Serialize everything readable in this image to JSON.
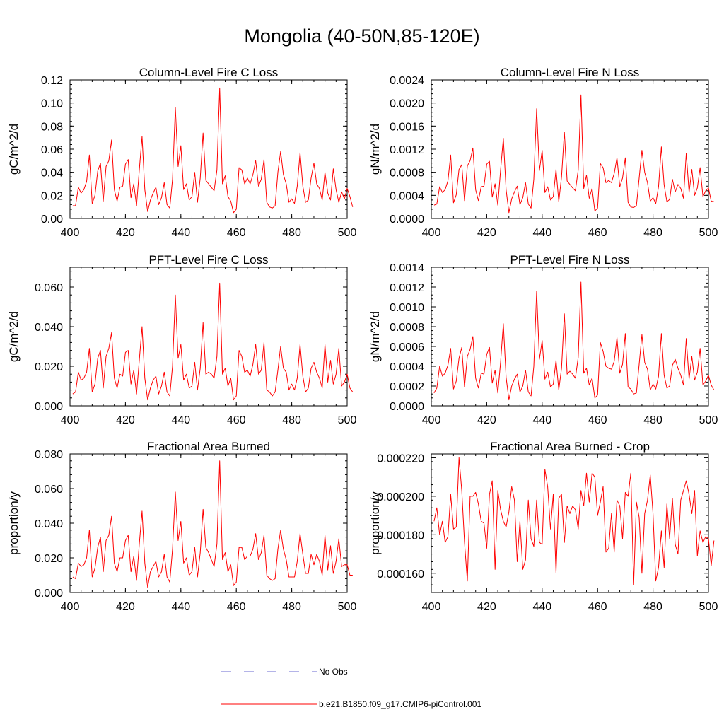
{
  "title": "Mongolia (40-50N,85-120E)",
  "chart_data": [
    {
      "type": "line",
      "title": "Column-Level Fire C Loss",
      "ylabel": "gC/m^2/d",
      "xlim": [
        400,
        500
      ],
      "ylim": [
        0,
        0.12
      ],
      "xticks": [
        400,
        420,
        440,
        460,
        480,
        500
      ],
      "xtick_labels": [
        "400",
        "420",
        "440",
        "460",
        "480",
        "500"
      ],
      "yticks": [
        0,
        0.02,
        0.04,
        0.06,
        0.08,
        0.1,
        0.12
      ],
      "ytick_labels": [
        "0.00",
        "0.02",
        "0.04",
        "0.06",
        "0.08",
        "0.10",
        "0.12"
      ],
      "series": [
        {
          "name": "b.e21.B1850.f09_g17.CMIP6-piControl.001",
          "color": "#ff0000",
          "x_start": 401,
          "x_step": 1,
          "values": [
            0.011,
            0.011,
            0.027,
            0.022,
            0.025,
            0.032,
            0.055,
            0.013,
            0.02,
            0.041,
            0.048,
            0.015,
            0.045,
            0.05,
            0.068,
            0.025,
            0.015,
            0.027,
            0.028,
            0.047,
            0.051,
            0.018,
            0.03,
            0.011,
            0.042,
            0.071,
            0.025,
            0.006,
            0.016,
            0.022,
            0.027,
            0.012,
            0.018,
            0.031,
            0.012,
            0.009,
            0.034,
            0.096,
            0.045,
            0.063,
            0.025,
            0.03,
            0.016,
            0.019,
            0.04,
            0.014,
            0.035,
            0.074,
            0.033,
            0.03,
            0.027,
            0.024,
            0.042,
            0.113,
            0.03,
            0.037,
            0.019,
            0.015,
            0.005,
            0.008,
            0.044,
            0.042,
            0.03,
            0.035,
            0.03,
            0.038,
            0.05,
            0.028,
            0.034,
            0.051,
            0.014,
            0.01,
            0.009,
            0.011,
            0.04,
            0.058,
            0.038,
            0.03,
            0.014,
            0.017,
            0.013,
            0.028,
            0.057,
            0.028,
            0.014,
            0.016,
            0.035,
            0.048,
            0.03,
            0.026,
            0.016,
            0.04,
            0.022,
            0.016,
            0.043,
            0.025,
            0.014,
            0.023,
            0.017,
            0.026,
            0.019,
            0.01
          ]
        }
      ]
    },
    {
      "type": "line",
      "title": "Column-Level Fire N Loss",
      "ylabel": "gN/m^2/d",
      "xlim": [
        400,
        500
      ],
      "ylim": [
        0,
        0.0024
      ],
      "xticks": [
        400,
        420,
        440,
        460,
        480,
        500
      ],
      "xtick_labels": [
        "400",
        "420",
        "440",
        "460",
        "480",
        "500"
      ],
      "yticks": [
        0,
        0.0004,
        0.0008,
        0.0012,
        0.0016,
        0.002,
        0.0024
      ],
      "ytick_labels": [
        "0.0000",
        "0.0004",
        "0.0008",
        "0.0012",
        "0.0016",
        "0.0020",
        "0.0024"
      ],
      "series": [
        {
          "name": "b.e21.B1850.f09_g17.CMIP6-piControl.001",
          "color": "#ff0000",
          "x_start": 401,
          "x_step": 1,
          "values": [
            0.00023,
            0.00025,
            0.00055,
            0.00045,
            0.0005,
            0.00065,
            0.0011,
            0.00027,
            0.00041,
            0.00085,
            0.00093,
            0.00031,
            0.00091,
            0.001,
            0.00122,
            0.0005,
            0.00031,
            0.00055,
            0.00056,
            0.00094,
            0.00099,
            0.00037,
            0.0006,
            0.00023,
            0.00084,
            0.00139,
            0.0005,
            0.0001,
            0.00034,
            0.00046,
            0.00056,
            0.00024,
            0.00036,
            0.00062,
            0.00025,
            0.00018,
            0.00068,
            0.0019,
            0.00083,
            0.00118,
            0.00045,
            0.00055,
            0.00032,
            0.00038,
            0.00085,
            0.00029,
            0.00072,
            0.0015,
            0.00065,
            0.00059,
            0.00053,
            0.00048,
            0.00084,
            0.00214,
            0.00052,
            0.00075,
            0.00035,
            0.00052,
            0.00013,
            0.00018,
            0.00095,
            0.00088,
            0.00062,
            0.00066,
            0.00062,
            0.00078,
            0.00105,
            0.00055,
            0.0007,
            0.00105,
            0.00028,
            0.0002,
            0.00019,
            0.00022,
            0.0007,
            0.00118,
            0.0008,
            0.00062,
            0.0003,
            0.00036,
            0.00026,
            0.00055,
            0.00124,
            0.00058,
            0.00029,
            0.00033,
            0.00068,
            0.00046,
            0.00059,
            0.00052,
            0.00035,
            0.00113,
            0.00045,
            0.00085,
            0.0004,
            0.00053,
            0.00088,
            0.00038,
            0.00048,
            0.00053,
            0.0003,
            0.00029
          ]
        }
      ]
    },
    {
      "type": "line",
      "title": "PFT-Level Fire C Loss",
      "ylabel": "gC/m^2/d",
      "xlim": [
        400,
        500
      ],
      "ylim": [
        0,
        0.07
      ],
      "xticks": [
        400,
        420,
        440,
        460,
        480,
        500
      ],
      "xtick_labels": [
        "400",
        "420",
        "440",
        "460",
        "480",
        "500"
      ],
      "yticks": [
        0,
        0.02,
        0.04,
        0.06
      ],
      "ytick_labels": [
        "0.000",
        "0.020",
        "0.040",
        "0.060"
      ],
      "series": [
        {
          "name": "b.e21.B1850.f09_g17.CMIP6-piControl.001",
          "color": "#ff0000",
          "x_start": 401,
          "x_step": 1,
          "values": [
            0.006,
            0.007,
            0.017,
            0.013,
            0.014,
            0.017,
            0.029,
            0.007,
            0.011,
            0.024,
            0.028,
            0.009,
            0.025,
            0.029,
            0.037,
            0.014,
            0.009,
            0.016,
            0.015,
            0.027,
            0.028,
            0.011,
            0.018,
            0.006,
            0.023,
            0.04,
            0.014,
            0.003,
            0.009,
            0.013,
            0.015,
            0.006,
            0.01,
            0.017,
            0.007,
            0.005,
            0.02,
            0.056,
            0.024,
            0.031,
            0.013,
            0.016,
            0.009,
            0.01,
            0.022,
            0.008,
            0.019,
            0.042,
            0.016,
            0.017,
            0.016,
            0.014,
            0.025,
            0.062,
            0.016,
            0.019,
            0.01,
            0.014,
            0.003,
            0.005,
            0.028,
            0.025,
            0.017,
            0.018,
            0.015,
            0.021,
            0.031,
            0.016,
            0.018,
            0.032,
            0.008,
            0.007,
            0.005,
            0.007,
            0.018,
            0.03,
            0.019,
            0.017,
            0.008,
            0.011,
            0.008,
            0.014,
            0.031,
            0.015,
            0.007,
            0.009,
            0.019,
            0.022,
            0.017,
            0.014,
            0.009,
            0.031,
            0.012,
            0.023,
            0.011,
            0.016,
            0.029,
            0.01,
            0.012,
            0.016,
            0.009,
            0.007
          ]
        }
      ]
    },
    {
      "type": "line",
      "title": "PFT-Level Fire N Loss",
      "ylabel": "gN/m^2/d",
      "xlim": [
        400,
        500
      ],
      "ylim": [
        0,
        0.0014
      ],
      "xticks": [
        400,
        420,
        440,
        460,
        480,
        500
      ],
      "xtick_labels": [
        "400",
        "420",
        "440",
        "460",
        "480",
        "500"
      ],
      "yticks": [
        0,
        0.0002,
        0.0004,
        0.0006,
        0.0008,
        0.001,
        0.0012,
        0.0014
      ],
      "ytick_labels": [
        "0.0000",
        "0.0002",
        "0.0004",
        "0.0006",
        "0.0008",
        "0.0010",
        "0.0012",
        "0.0014"
      ],
      "series": [
        {
          "name": "b.e21.B1850.f09_g17.CMIP6-piControl.001",
          "color": "#ff0000",
          "x_start": 401,
          "x_step": 1,
          "values": [
            0.00013,
            0.00018,
            0.0004,
            0.0003,
            0.00033,
            0.00041,
            0.00058,
            0.00017,
            0.00025,
            0.00048,
            0.00059,
            0.00019,
            0.0005,
            0.00057,
            0.0007,
            0.00028,
            0.00018,
            0.00033,
            0.00032,
            0.00052,
            0.00059,
            0.00023,
            0.00036,
            0.00013,
            0.00044,
            0.00083,
            0.00029,
            6e-05,
            0.0002,
            0.00027,
            0.00032,
            0.00014,
            0.0002,
            0.00036,
            0.00014,
            0.0001,
            0.0004,
            0.00116,
            0.00047,
            0.00066,
            0.00027,
            0.00034,
            0.00019,
            0.00022,
            0.00046,
            0.00016,
            0.00038,
            0.00093,
            0.00032,
            0.00035,
            0.00032,
            0.00028,
            0.00049,
            0.00125,
            0.00033,
            0.00038,
            0.00021,
            0.00028,
            8e-05,
            0.00011,
            0.00064,
            0.00055,
            0.0004,
            0.00038,
            0.00037,
            0.00045,
            0.00069,
            0.00033,
            0.00042,
            0.00073,
            0.00019,
            0.00017,
            0.00012,
            0.00013,
            0.00042,
            0.00072,
            0.00044,
            0.00037,
            0.00016,
            0.00022,
            0.00017,
            0.0003,
            0.00073,
            0.00031,
            0.00018,
            0.0002,
            0.00041,
            0.00047,
            0.00038,
            0.00031,
            0.00021,
            0.00068,
            0.00027,
            0.0005,
            0.00026,
            0.00034,
            0.00058,
            0.00021,
            0.00025,
            0.00031,
            0.00021,
            0.00016
          ]
        }
      ]
    },
    {
      "type": "line",
      "title": "Fractional Area Burned",
      "ylabel": "proportion/y",
      "xlim": [
        400,
        500
      ],
      "ylim": [
        0,
        0.08
      ],
      "xticks": [
        400,
        420,
        440,
        460,
        480,
        500
      ],
      "xtick_labels": [
        "400",
        "420",
        "440",
        "460",
        "480",
        "500"
      ],
      "yticks": [
        0,
        0.02,
        0.04,
        0.06,
        0.08
      ],
      "ytick_labels": [
        "0.000",
        "0.020",
        "0.040",
        "0.060",
        "0.080"
      ],
      "series": [
        {
          "name": "b.e21.B1850.f09_g17.CMIP6-piControl.001",
          "color": "#ff0000",
          "x_start": 401,
          "x_step": 1,
          "values": [
            0.009,
            0.008,
            0.017,
            0.015,
            0.016,
            0.02,
            0.036,
            0.009,
            0.014,
            0.026,
            0.032,
            0.012,
            0.03,
            0.033,
            0.044,
            0.017,
            0.012,
            0.02,
            0.02,
            0.03,
            0.033,
            0.012,
            0.021,
            0.007,
            0.028,
            0.047,
            0.017,
            0.003,
            0.012,
            0.015,
            0.018,
            0.009,
            0.012,
            0.022,
            0.009,
            0.006,
            0.025,
            0.058,
            0.03,
            0.041,
            0.017,
            0.02,
            0.01,
            0.012,
            0.026,
            0.009,
            0.023,
            0.048,
            0.026,
            0.023,
            0.019,
            0.015,
            0.028,
            0.076,
            0.019,
            0.023,
            0.012,
            0.016,
            0.004,
            0.006,
            0.026,
            0.026,
            0.019,
            0.021,
            0.021,
            0.025,
            0.034,
            0.019,
            0.023,
            0.033,
            0.01,
            0.008,
            0.007,
            0.008,
            0.025,
            0.036,
            0.025,
            0.019,
            0.009,
            0.009,
            0.009,
            0.018,
            0.034,
            0.022,
            0.011,
            0.011,
            0.022,
            0.016,
            0.022,
            0.018,
            0.01,
            0.033,
            0.013,
            0.027,
            0.011,
            0.018,
            0.031,
            0.015,
            0.016,
            0.016,
            0.01,
            0.01
          ]
        }
      ]
    },
    {
      "type": "line",
      "title": "Fractional Area Burned - Crop",
      "ylabel": "proportion/y",
      "xlim": [
        400,
        500
      ],
      "ylim": [
        0.00015,
        0.000222
      ],
      "xticks": [
        400,
        420,
        440,
        460,
        480,
        500
      ],
      "xtick_labels": [
        "400",
        "420",
        "440",
        "460",
        "480",
        "500"
      ],
      "yticks": [
        0.00016,
        0.00018,
        0.0002,
        0.00022
      ],
      "ytick_labels": [
        "0.000160",
        "0.000180",
        "0.000200",
        "0.000220"
      ],
      "series": [
        {
          "name": "b.e21.B1850.f09_g17.CMIP6-piControl.001",
          "color": "#ff0000",
          "x_start": 401,
          "x_step": 1,
          "values": [
            0.000187,
            0.000194,
            0.00018,
            0.000187,
            0.000176,
            0.000179,
            0.000201,
            0.000183,
            0.000184,
            0.00022,
            0.000203,
            0.000176,
            0.000156,
            0.0002,
            0.0002,
            0.000202,
            0.000196,
            0.000187,
            0.000186,
            0.000173,
            0.000201,
            0.000208,
            0.000162,
            0.000203,
            0.000193,
            0.000187,
            0.000184,
            0.000192,
            0.000205,
            0.000198,
            0.000166,
            0.000187,
            0.000162,
            0.000167,
            0.000198,
            0.000178,
            0.000174,
            0.000198,
            0.000176,
            0.000175,
            0.000214,
            0.000205,
            0.000183,
            0.000201,
            0.00016,
            0.000199,
            0.000201,
            0.000176,
            0.000195,
            0.000191,
            0.000195,
            0.000193,
            0.000183,
            0.000203,
            0.000195,
            0.000212,
            0.000197,
            0.000212,
            0.00021,
            0.00019,
            0.000197,
            0.000205,
            0.000171,
            0.000173,
            0.000191,
            0.000171,
            0.000198,
            0.000195,
            0.000178,
            0.000202,
            0.0002,
            0.000212,
            0.000154,
            0.000197,
            0.000189,
            0.00016,
            0.000191,
            0.000198,
            0.000211,
            0.000191,
            0.000156,
            0.000163,
            0.000182,
            0.000163,
            0.000196,
            0.000178,
            0.000199,
            0.000175,
            0.00017,
            0.000198,
            0.000203,
            0.000208,
            0.000201,
            0.000191,
            0.000203,
            0.000169,
            0.000182,
            0.000176,
            0.000179,
            0.000178,
            0.000164,
            0.000177
          ]
        }
      ]
    }
  ],
  "legend": [
    {
      "label": "No Obs",
      "color": "#6a6ad0",
      "style": "dashed"
    },
    {
      "label": "b.e21.B1850.f09_g17.CMIP6-piControl.001",
      "color": "#ff0000",
      "style": "solid"
    }
  ]
}
